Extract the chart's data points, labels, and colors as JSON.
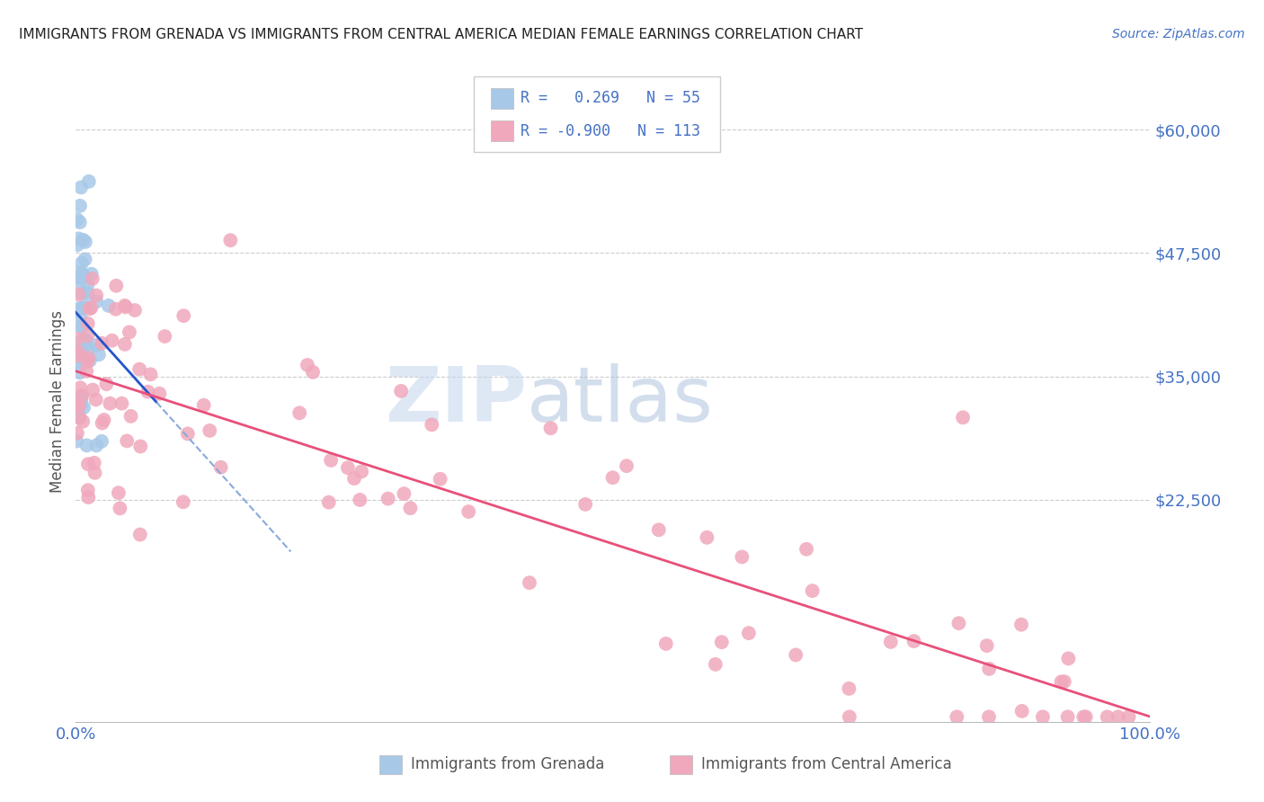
{
  "title": "IMMIGRANTS FROM GRENADA VS IMMIGRANTS FROM CENTRAL AMERICA MEDIAN FEMALE EARNINGS CORRELATION CHART",
  "source": "Source: ZipAtlas.com",
  "ylabel": "Median Female Earnings",
  "legend_label_blue": "Immigrants from Grenada",
  "legend_label_pink": "Immigrants from Central America",
  "r_blue": "0.269",
  "n_blue": "55",
  "r_pink": "-0.900",
  "n_pink": "113",
  "ytick_vals": [
    0,
    22500,
    35000,
    47500,
    60000
  ],
  "ytick_labels": [
    "",
    "$22,500",
    "$35,000",
    "$47,500",
    "$60,000"
  ],
  "watermark_zip": "ZIP",
  "watermark_atlas": "atlas",
  "blue_color": "#a8c8e8",
  "pink_color": "#f0a8bc",
  "blue_line_color": "#2255cc",
  "pink_line_color": "#e8507a",
  "blue_line_dash_color": "#88aadd",
  "title_fontsize": 11,
  "source_fontsize": 10,
  "tick_fontsize": 13,
  "ylabel_fontsize": 12
}
